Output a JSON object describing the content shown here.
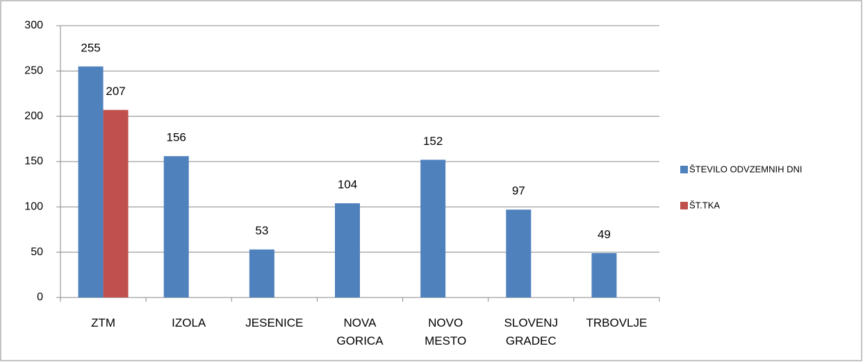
{
  "chart_data": {
    "type": "bar",
    "categories": [
      "ZTM",
      "IZOLA",
      "JESENICE",
      "NOVA GORICA",
      "NOVO MESTO",
      "SLOVENJ GRADEC",
      "TRBOVLJE"
    ],
    "series": [
      {
        "name": "ŠTEVILO ODVZEMNIH DNI",
        "color": "#4f81bd",
        "values": [
          255,
          156,
          53,
          104,
          152,
          97,
          49
        ]
      },
      {
        "name": "ŠT.TKA",
        "color": "#c0504d",
        "values": [
          207,
          null,
          null,
          null,
          null,
          null,
          null
        ]
      }
    ],
    "ylim": [
      0,
      300
    ],
    "yticks": [
      0,
      50,
      100,
      150,
      200,
      250,
      300
    ],
    "grid": true,
    "legend": "right"
  }
}
